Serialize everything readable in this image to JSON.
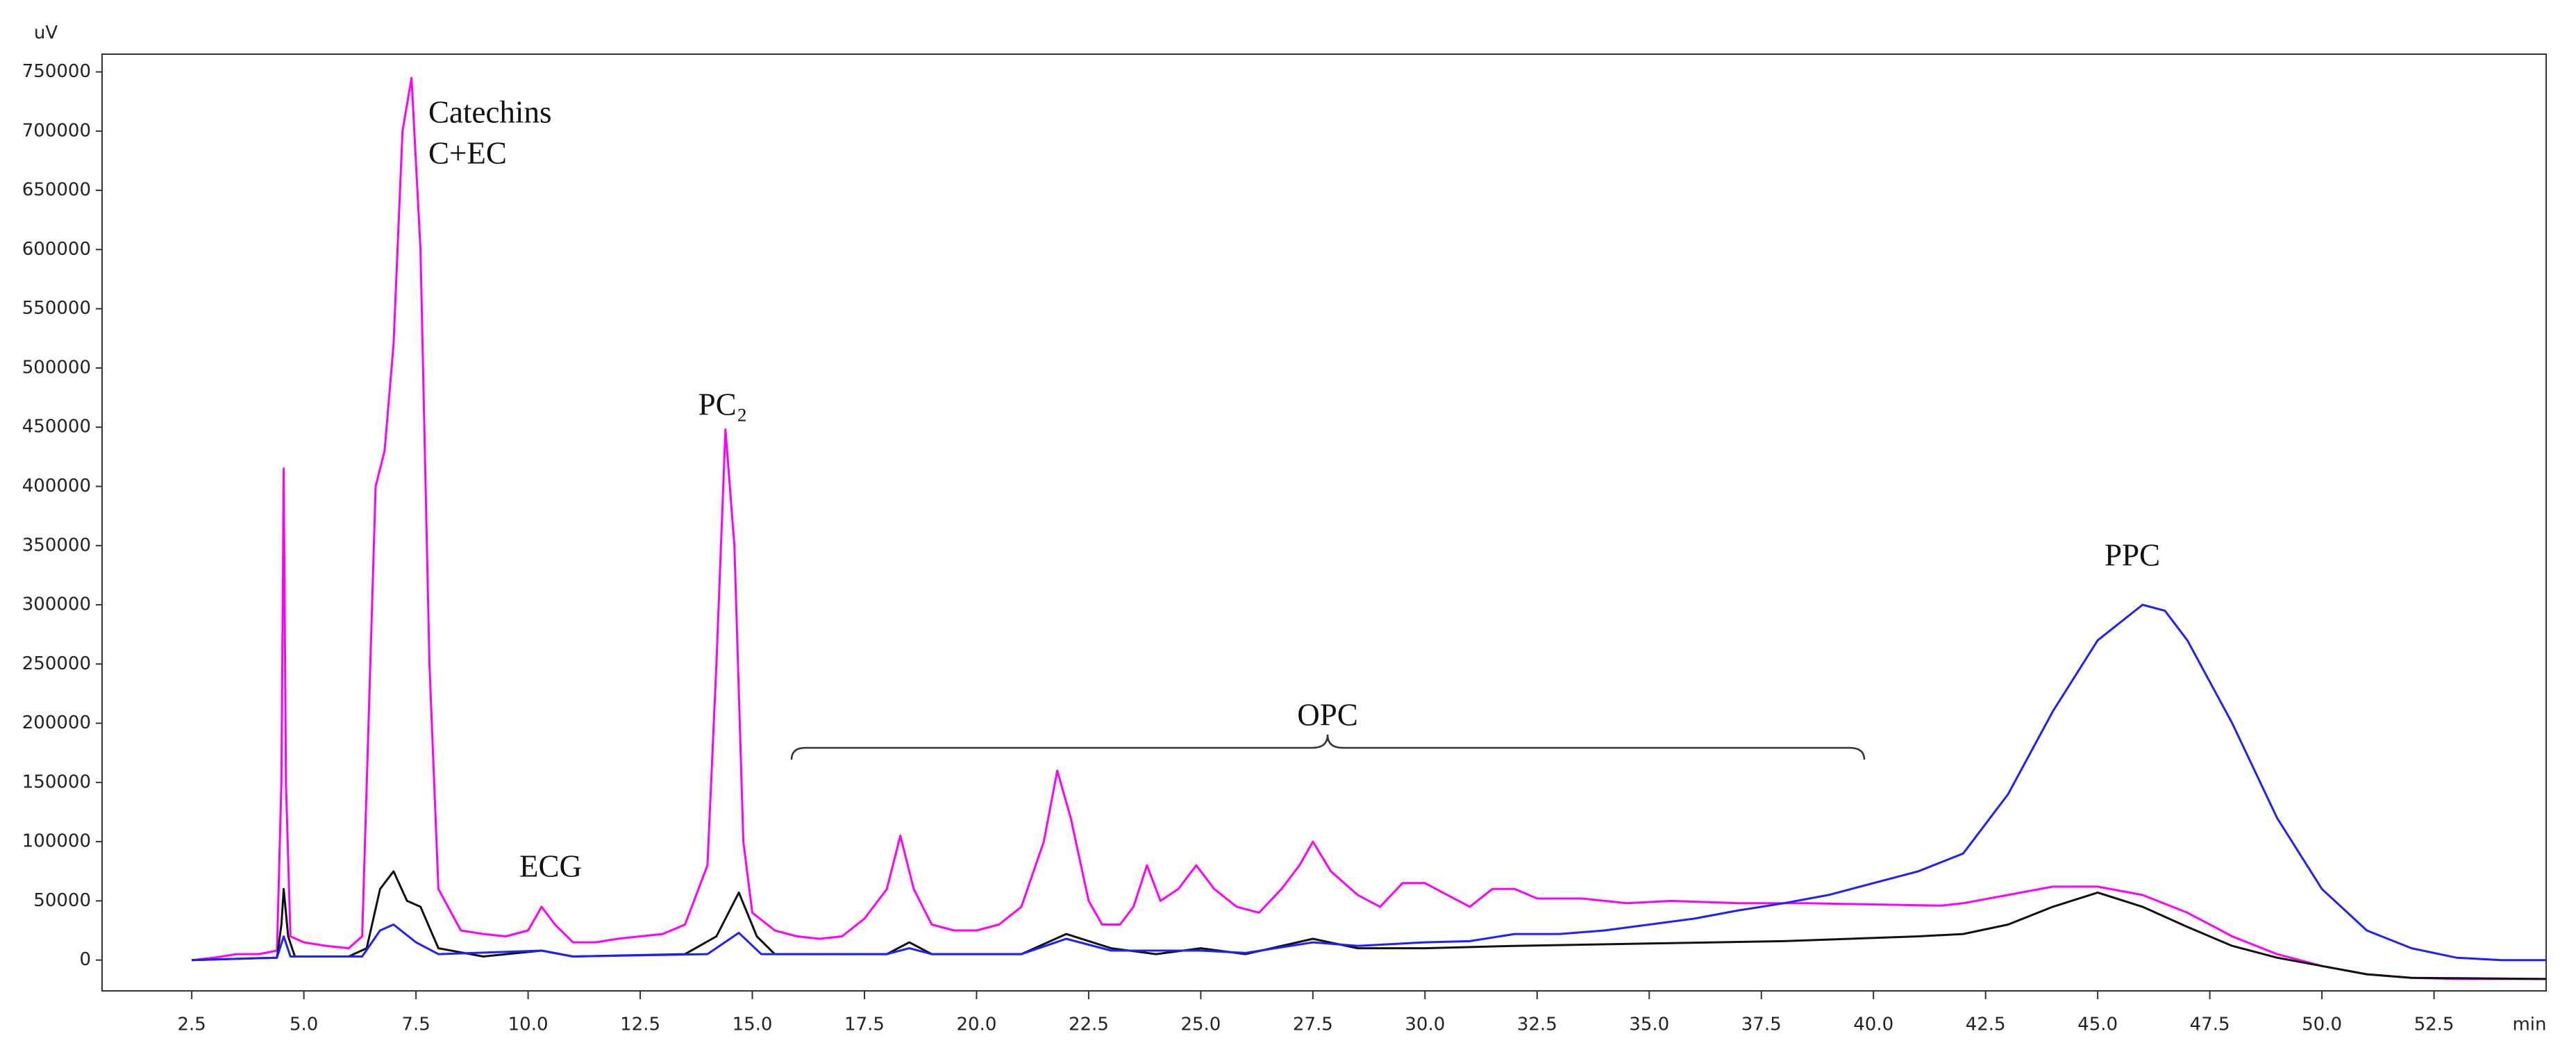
{
  "chart_data": {
    "type": "line",
    "y_label": "uV",
    "x_label": "min",
    "annotations": [
      "Catechins",
      "C+EC",
      "ECG",
      "PC₂",
      "OPC",
      "PPC"
    ],
    "xlim": [
      0.5,
      55
    ],
    "ylim": [
      -26000,
      765000
    ],
    "xticks": [
      2.5,
      {
        "value": 5,
        "label": "5.0"
      },
      7.5,
      {
        "value": 10,
        "label": "10.0"
      },
      12.5,
      {
        "value": 15,
        "label": "15.0"
      },
      17.5,
      {
        "value": 20,
        "label": "20.0"
      },
      22.5,
      {
        "value": 25,
        "label": "25.0"
      },
      27.5,
      {
        "value": 30,
        "label": "30.0"
      },
      32.5,
      {
        "value": 35,
        "label": "35.0"
      },
      37.5,
      {
        "value": 40,
        "label": "40.0"
      },
      42.5,
      {
        "value": 45,
        "label": "45.0"
      },
      47.5,
      {
        "value": 50,
        "label": "50.0"
      },
      52.5
    ],
    "yticks": [
      0,
      50000,
      100000,
      150000,
      200000,
      250000,
      300000,
      350000,
      400000,
      450000,
      500000,
      550000,
      600000,
      650000,
      700000,
      750000
    ],
    "series": [
      {
        "color": "#ff00ff",
        "x": [
          2.5,
          3.0,
          3.5,
          4.0,
          4.4,
          4.5,
          4.55,
          4.6,
          4.7,
          5.0,
          5.5,
          6.0,
          6.3,
          6.6,
          6.8,
          7.0,
          7.2,
          7.4,
          7.6,
          7.8,
          8.0,
          8.5,
          9.0,
          9.5,
          10.0,
          10.3,
          10.6,
          11.0,
          11.5,
          12.0,
          12.5,
          13.0,
          13.5,
          14.0,
          14.2,
          14.4,
          14.6,
          14.8,
          15.0,
          15.5,
          16.0,
          16.5,
          17.0,
          17.5,
          18.0,
          18.3,
          18.6,
          19.0,
          19.5,
          20.0,
          20.5,
          21.0,
          21.5,
          21.8,
          22.1,
          22.5,
          22.8,
          23.2,
          23.5,
          23.8,
          24.1,
          24.5,
          24.9,
          25.3,
          25.8,
          26.3,
          26.8,
          27.2,
          27.5,
          27.9,
          28.5,
          29.0,
          29.5,
          30.0,
          30.5,
          31.0,
          31.5,
          32.0,
          32.5,
          33.5,
          34.5,
          35.5,
          37.0,
          38.5,
          40.0,
          41.5,
          42.0,
          43.0,
          44.0,
          45.0,
          46.0,
          47.0,
          48.0,
          49.0,
          50.0,
          51.0,
          52.0,
          53.0,
          55.0
        ],
        "values": [
          0,
          2000,
          5000,
          5000,
          8000,
          150000,
          415000,
          150000,
          20000,
          15000,
          12000,
          10000,
          20000,
          400000,
          430000,
          520000,
          700000,
          745000,
          600000,
          250000,
          60000,
          25000,
          22000,
          20000,
          25000,
          45000,
          30000,
          15000,
          15000,
          18000,
          20000,
          22000,
          30000,
          80000,
          250000,
          448000,
          350000,
          100000,
          40000,
          25000,
          20000,
          18000,
          20000,
          35000,
          60000,
          105000,
          60000,
          30000,
          25000,
          25000,
          30000,
          45000,
          100000,
          160000,
          120000,
          50000,
          30000,
          30000,
          45000,
          80000,
          50000,
          60000,
          80000,
          60000,
          45000,
          40000,
          60000,
          80000,
          100000,
          75000,
          55000,
          45000,
          65000,
          65000,
          55000,
          45000,
          60000,
          60000,
          52000,
          52000,
          48000,
          50000,
          48000,
          48000,
          47000,
          46000,
          48000,
          55000,
          62000,
          62000,
          55000,
          40000,
          20000,
          5000,
          -5000,
          -12000,
          -15000,
          -16000,
          -16000
        ]
      },
      {
        "color": "#111111",
        "x": [
          2.5,
          4.4,
          4.5,
          4.55,
          4.65,
          4.8,
          6.0,
          6.4,
          6.7,
          7.0,
          7.3,
          7.6,
          8.0,
          9.0,
          10.3,
          11.0,
          13.5,
          14.2,
          14.7,
          15.1,
          15.5,
          18.0,
          18.5,
          19.0,
          21.0,
          22.0,
          23.0,
          24.0,
          25.0,
          26.0,
          27.5,
          28.5,
          30.0,
          32.0,
          35.0,
          38.0,
          41.0,
          42.0,
          43.0,
          44.0,
          45.0,
          46.0,
          47.0,
          48.0,
          49.0,
          50.0,
          51.0,
          52.0,
          55.0
        ],
        "values": [
          0,
          2000,
          30000,
          60000,
          20000,
          3000,
          3000,
          10000,
          60000,
          75000,
          50000,
          45000,
          10000,
          3000,
          8000,
          3000,
          5000,
          20000,
          57000,
          20000,
          5000,
          5000,
          15000,
          5000,
          5000,
          22000,
          10000,
          5000,
          10000,
          5000,
          18000,
          10000,
          10000,
          12000,
          14000,
          16000,
          20000,
          22000,
          30000,
          45000,
          57000,
          45000,
          28000,
          12000,
          2000,
          -5000,
          -12000,
          -15000,
          -16000
        ]
      },
      {
        "color": "#1f1fff",
        "x": [
          2.5,
          4.4,
          4.55,
          4.7,
          6.3,
          6.7,
          7.0,
          7.5,
          8.0,
          10.3,
          11.0,
          14.0,
          14.7,
          15.2,
          18.0,
          18.5,
          19.0,
          21.0,
          22.0,
          23.0,
          25.0,
          26.0,
          27.5,
          28.5,
          30.0,
          31.0,
          32.0,
          33.0,
          34.0,
          35.0,
          36.0,
          37.0,
          38.0,
          39.0,
          40.0,
          41.0,
          42.0,
          43.0,
          44.0,
          45.0,
          46.0,
          46.5,
          47.0,
          48.0,
          49.0,
          50.0,
          51.0,
          52.0,
          53.0,
          54.0,
          55.0
        ],
        "values": [
          0,
          2000,
          20000,
          3000,
          3000,
          25000,
          30000,
          15000,
          5000,
          8000,
          3000,
          5000,
          23000,
          5000,
          5000,
          10000,
          5000,
          5000,
          18000,
          8000,
          8000,
          6000,
          15000,
          12000,
          15000,
          16000,
          22000,
          22000,
          25000,
          30000,
          35000,
          42000,
          48000,
          55000,
          65000,
          75000,
          90000,
          140000,
          210000,
          270000,
          300000,
          295000,
          270000,
          200000,
          120000,
          60000,
          25000,
          10000,
          2000,
          0,
          0
        ]
      }
    ]
  }
}
